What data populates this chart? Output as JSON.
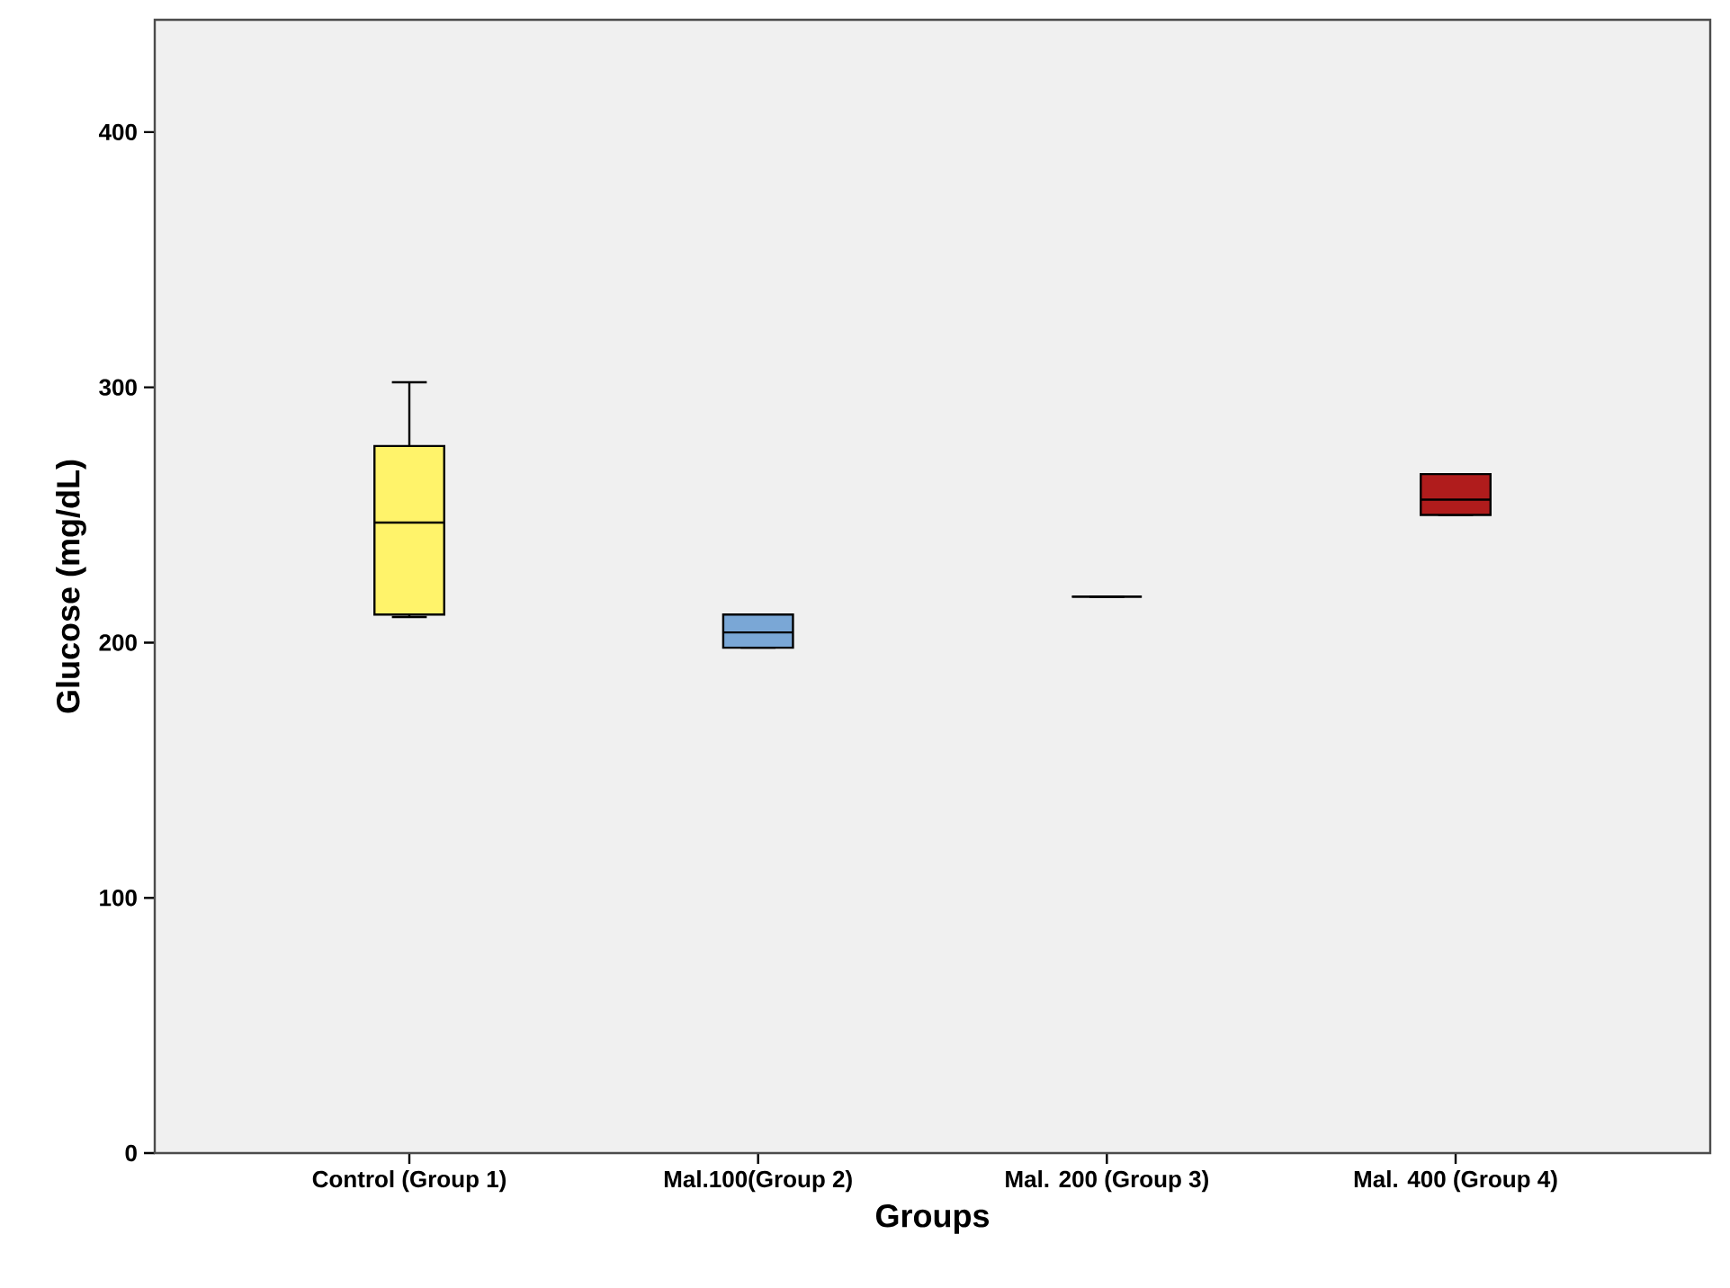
{
  "chart_data": {
    "type": "box",
    "xlabel": "Groups",
    "ylabel": "Glucose (mg/dL)",
    "categories": [
      "Control (Group 1)",
      "Mal.100(Group 2)",
      "Mal. 200 (Group 3)",
      "Mal. 400 (Group 4)"
    ],
    "boxes": [
      {
        "low": 210,
        "q1": 211,
        "median": 247,
        "q3": 277,
        "high": 302
      },
      {
        "low": 198,
        "q1": 198,
        "median": 204,
        "q3": 211,
        "high": 211
      },
      {
        "low": 218,
        "q1": 218,
        "median": 218,
        "q3": 218,
        "high": 218
      },
      {
        "low": 250,
        "q1": 250,
        "median": 256,
        "q3": 266,
        "high": 266
      }
    ],
    "colors": [
      "#fff36a",
      "#7aa7d6",
      "#000000",
      "#b01c1c"
    ],
    "ylim": [
      0,
      444
    ],
    "yticks": [
      0,
      100,
      200,
      300,
      400
    ]
  }
}
